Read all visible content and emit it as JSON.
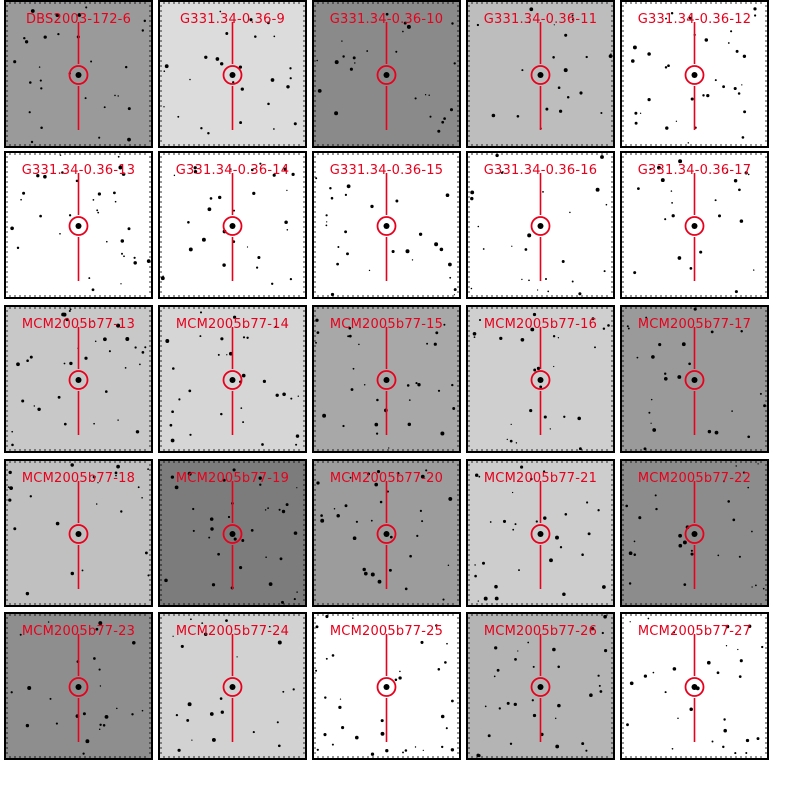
{
  "panels": [
    {
      "label": "DBS2003-172-6",
      "bg": "#9a9a9a"
    },
    {
      "label": "G331.34-0.36-9",
      "bg": "#dcdcdc"
    },
    {
      "label": "G331.34-0.36-10",
      "bg": "#8a8a8a"
    },
    {
      "label": "G331.34-0.36-11",
      "bg": "#bdbdbd"
    },
    {
      "label": "G331.34-0.36-12",
      "bg": "#ffffff"
    },
    {
      "label": "G331.34-0.36-13",
      "bg": "#ffffff"
    },
    {
      "label": "G331.34-0.36-14",
      "bg": "#ffffff"
    },
    {
      "label": "G331.34-0.36-15",
      "bg": "#ffffff"
    },
    {
      "label": "G331.34-0.36-16",
      "bg": "#ffffff"
    },
    {
      "label": "G331.34-0.36-17",
      "bg": "#ffffff"
    },
    {
      "label": "MCM2005b77-13",
      "bg": "#c8c8c8"
    },
    {
      "label": "MCM2005b77-14",
      "bg": "#d6d6d6"
    },
    {
      "label": "MCM2005b77-15",
      "bg": "#a8a8a8"
    },
    {
      "label": "MCM2005b77-16",
      "bg": "#cfcfcf"
    },
    {
      "label": "MCM2005b77-17",
      "bg": "#9a9a9a"
    },
    {
      "label": "MCM2005b77-18",
      "bg": "#c0c0c0"
    },
    {
      "label": "MCM2005b77-19",
      "bg": "#7c7c7c"
    },
    {
      "label": "MCM2005b77-20",
      "bg": "#9c9c9c"
    },
    {
      "label": "MCM2005b77-21",
      "bg": "#cdcdcd"
    },
    {
      "label": "MCM2005b77-22",
      "bg": "#8c8c8c"
    },
    {
      "label": "MCM2005b77-23",
      "bg": "#8e8e8e"
    },
    {
      "label": "MCM2005b77-24",
      "bg": "#d2d2d2"
    },
    {
      "label": "MCM2005b77-25",
      "bg": "#ffffff"
    },
    {
      "label": "MCM2005b77-26",
      "bg": "#b4b4b4"
    },
    {
      "label": "MCM2005b77-27",
      "bg": "#ffffff"
    }
  ],
  "marker_color": "#e8001c"
}
